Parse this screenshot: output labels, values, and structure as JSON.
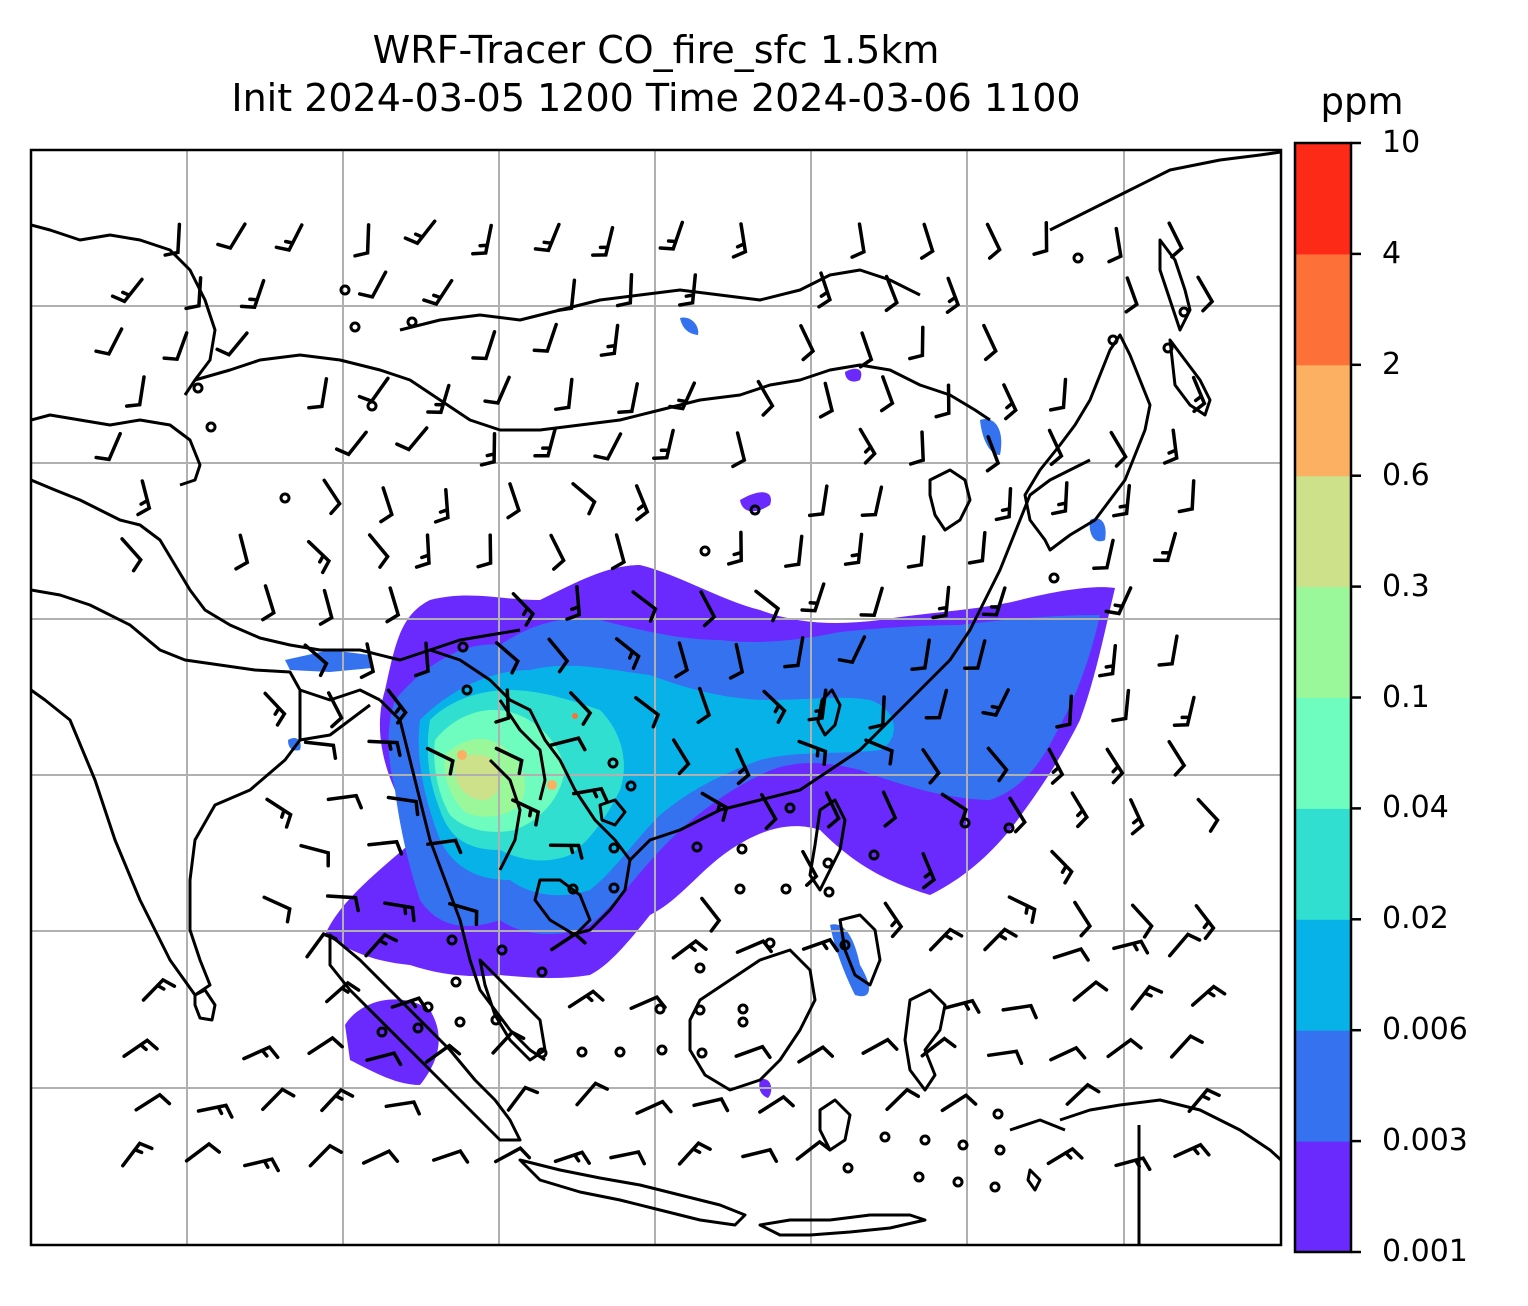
{
  "title": {
    "line1": "WRF-Tracer CO_fire_sfc 1.5km",
    "line2": "Init 2024-03-05 1200 Time 2024-03-06 1100"
  },
  "colorbar": {
    "unit": "ppm",
    "levels": [
      "0.001",
      "0.003",
      "0.006",
      "0.02",
      "0.04",
      "0.1",
      "0.3",
      "0.6",
      "2",
      "4",
      "10"
    ],
    "colors": [
      "#6a2afe",
      "#3472f0",
      "#07b2e8",
      "#30dfd0",
      "#6ffcbf",
      "#9af89a",
      "#cde08a",
      "#fcb062",
      "#fd7138",
      "#fc2a16"
    ]
  },
  "map": {
    "features": [
      "coastline",
      "gridlines",
      "wind-barbs",
      "calm-wind-circles",
      "co-fire-plume"
    ],
    "gridline_color": "#b0b0b0"
  }
}
